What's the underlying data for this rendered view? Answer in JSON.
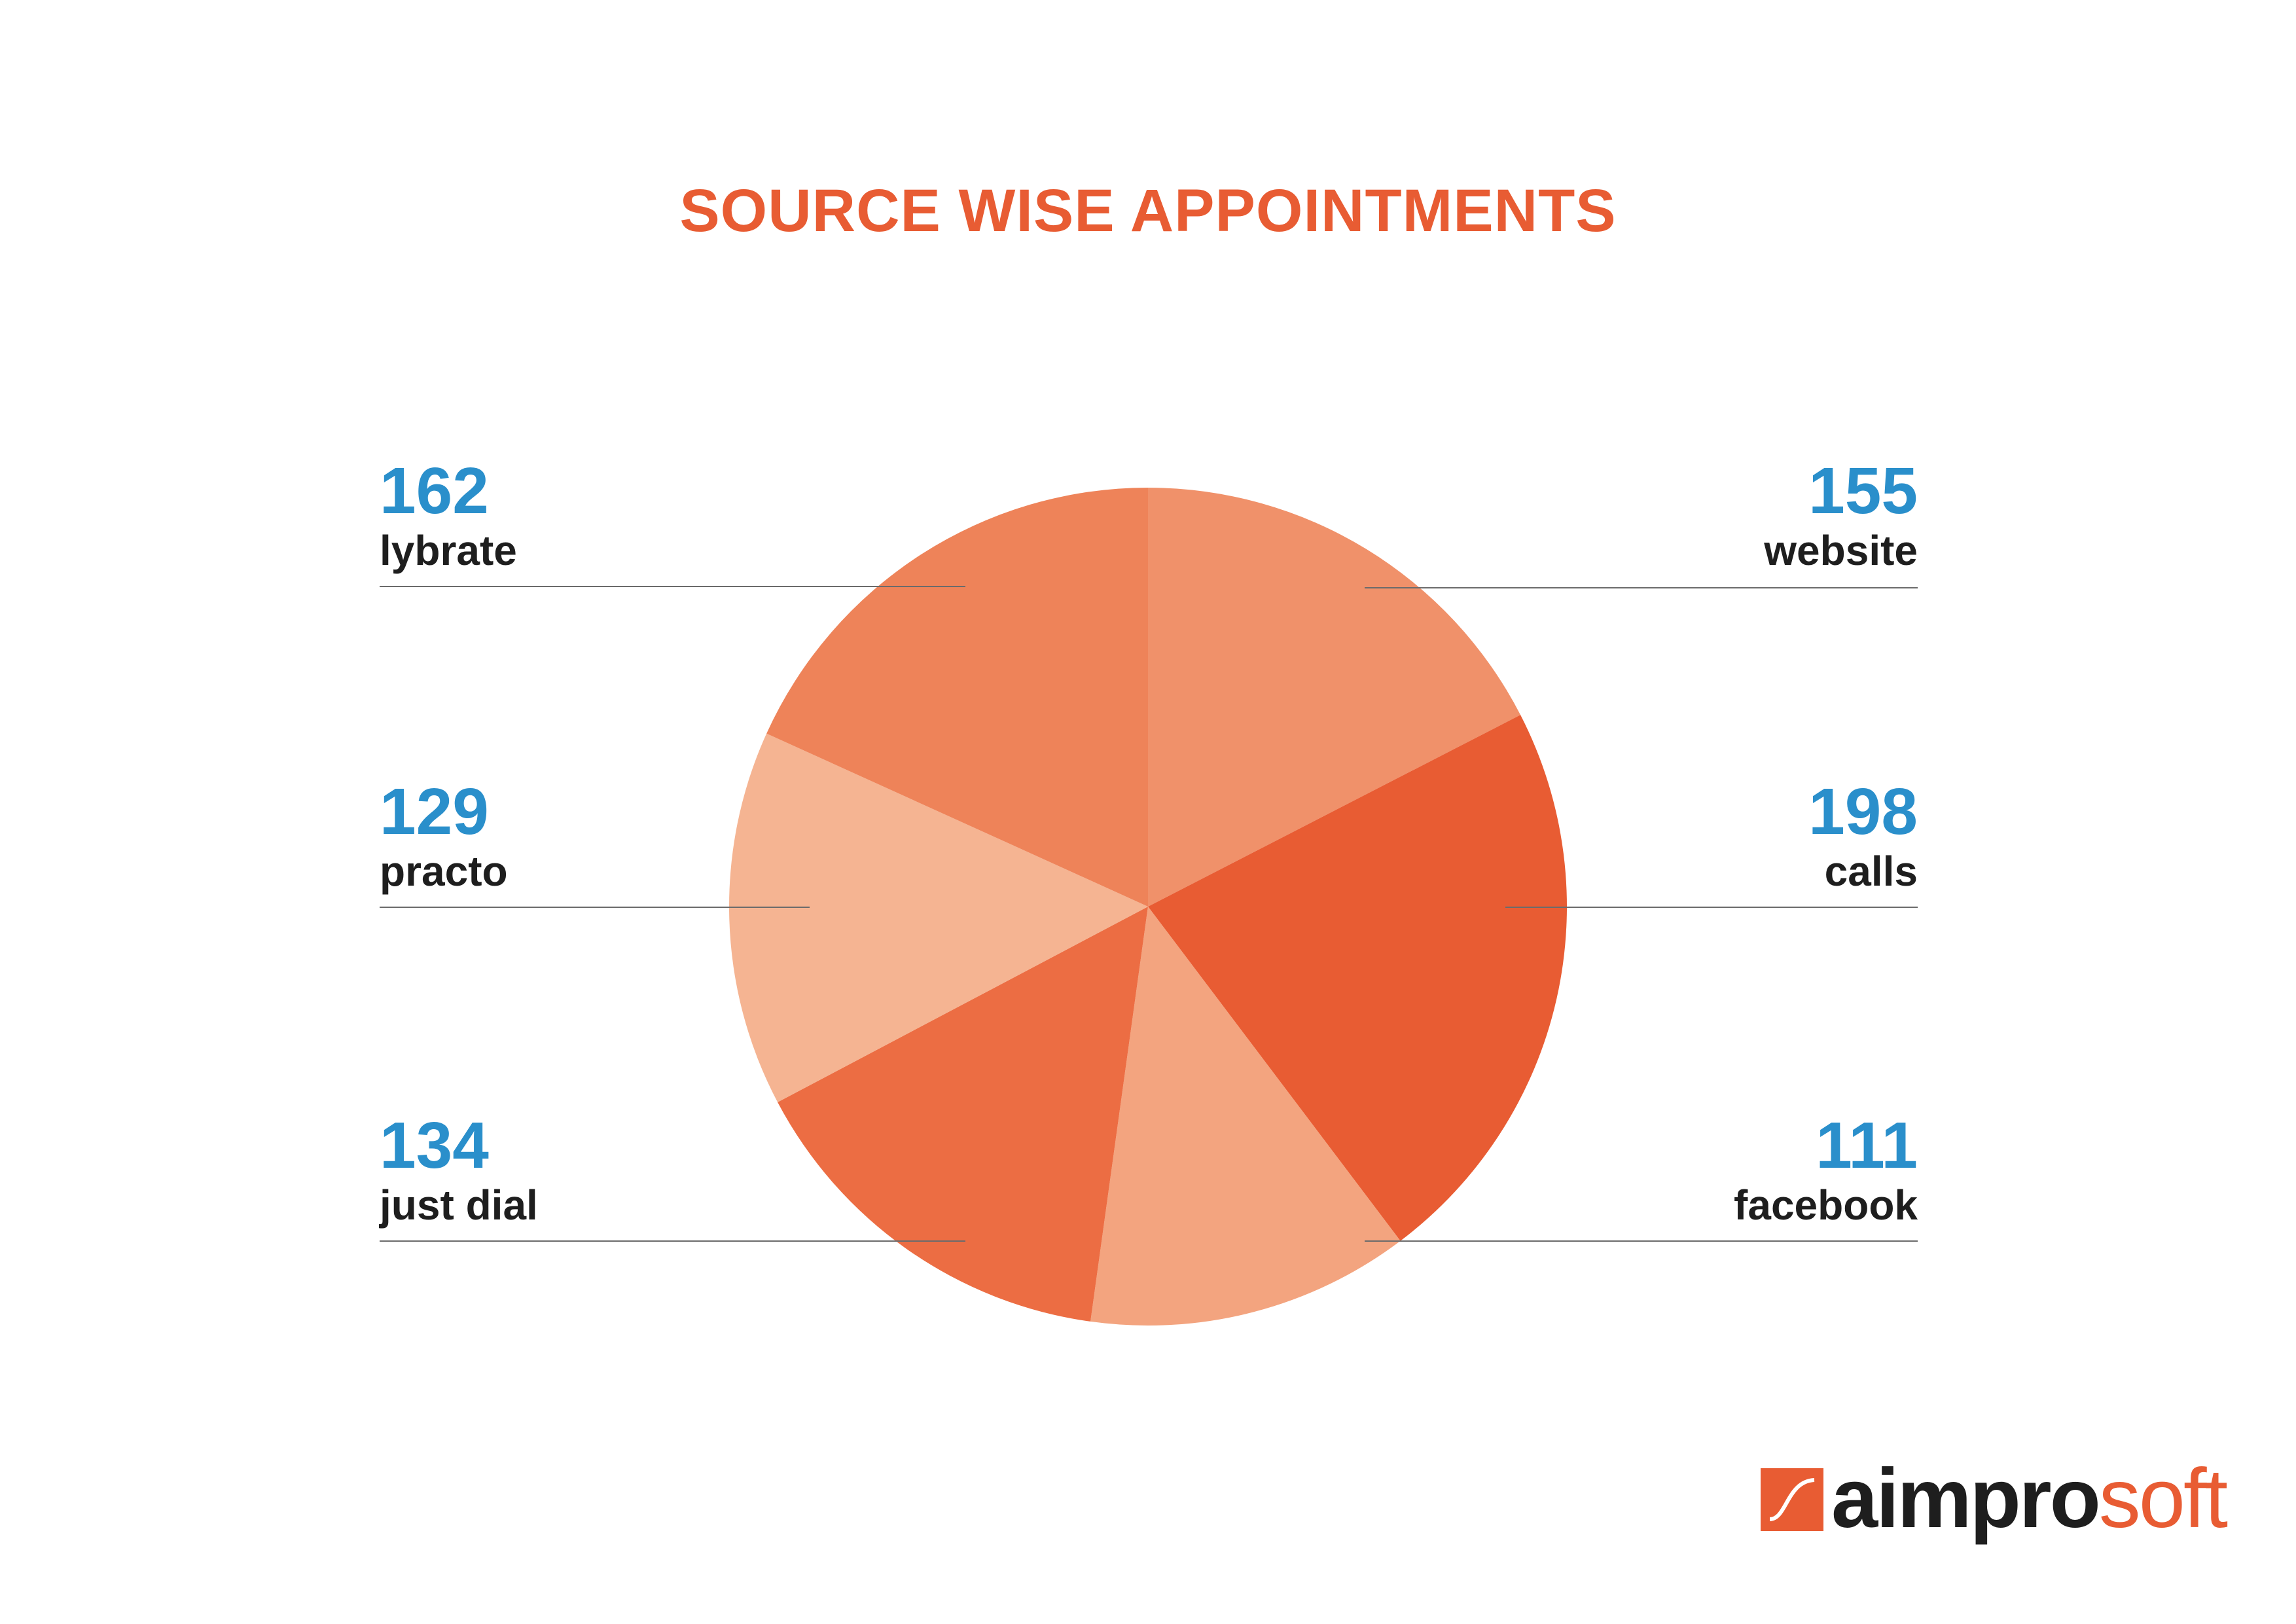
{
  "chart_data": {
    "type": "pie",
    "title": "SOURCE WISE APPOINTMENTS",
    "slices": [
      {
        "label": "website",
        "value": 155,
        "color": "#f0916a"
      },
      {
        "label": "calls",
        "value": 198,
        "color": "#e85c33"
      },
      {
        "label": "facebook",
        "value": 111,
        "color": "#f3a47f"
      },
      {
        "label": "just dial",
        "value": 134,
        "color": "#ec6d43"
      },
      {
        "label": "practo",
        "value": 129,
        "color": "#f5b492"
      },
      {
        "label": "lybrate",
        "value": 162,
        "color": "#ee8359"
      }
    ],
    "label_colors": {
      "value": "#2a8fcb",
      "label": "#1e1e1e",
      "title": "#e85c33"
    }
  },
  "callouts": {
    "lybrate": {
      "value": "162",
      "label": "lybrate"
    },
    "practo": {
      "value": "129",
      "label": "practo"
    },
    "just_dial": {
      "value": "134",
      "label": "just dial"
    },
    "website": {
      "value": "155",
      "label": "website"
    },
    "calls": {
      "value": "198",
      "label": "calls"
    },
    "facebook": {
      "value": "111",
      "label": "facebook"
    }
  },
  "logo": {
    "dark": "aimpro",
    "accent": "soft"
  }
}
